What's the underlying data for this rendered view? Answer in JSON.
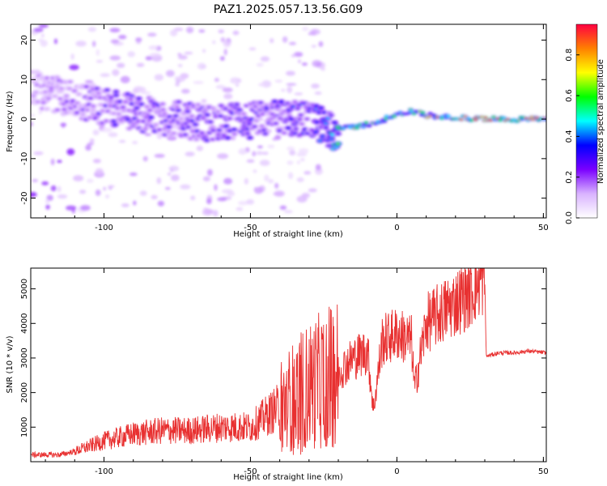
{
  "figure": {
    "title": "PAZ1.2025.057.13.56.G09"
  },
  "chart_data": [
    {
      "type": "heatmap",
      "title": "PAZ1.2025.057.13.56.G09",
      "xlabel": "Height of straight line (km)",
      "ylabel": "Frequency (Hz)",
      "xlim": [
        -125,
        51
      ],
      "ylim": [
        -25,
        24
      ],
      "xticks": [
        -100,
        -50,
        0,
        50
      ],
      "yticks": [
        -20,
        -10,
        0,
        10,
        20
      ],
      "colorbar": {
        "label": "Normalized spectral amplitude",
        "range": [
          0,
          0.95
        ],
        "ticks": [
          0.0,
          0.2,
          0.4,
          0.6,
          0.8
        ],
        "colors": [
          "#ffffff",
          "#d9b3ff",
          "#7a00ff",
          "#0000ff",
          "#00ffff",
          "#00ff00",
          "#ffff00",
          "#ff8000",
          "#ff0040"
        ]
      },
      "ridge": {
        "name": "",
        "x": [
          -125,
          -115,
          -105,
          -95,
          -85,
          -75,
          -65,
          -55,
          -45,
          -35,
          -27,
          -22,
          -15,
          -8,
          0,
          5,
          10,
          20,
          30,
          40,
          51
        ],
        "frequency": [
          8,
          6,
          4,
          2.5,
          1,
          0,
          -1,
          -0.5,
          0,
          0.5,
          -1,
          -3,
          -2,
          -1,
          1,
          2,
          1,
          0.3,
          0,
          0,
          0
        ],
        "amplitude": [
          0.15,
          0.2,
          0.25,
          0.3,
          0.3,
          0.28,
          0.3,
          0.32,
          0.3,
          0.35,
          0.4,
          0.55,
          0.6,
          0.6,
          0.55,
          0.6,
          0.7,
          0.85,
          0.9,
          0.85,
          0.8
        ]
      }
    },
    {
      "type": "line",
      "title": "",
      "xlabel": "Height of straight line (km)",
      "ylabel": "SNR (10 * v/v)",
      "xlim": [
        -125,
        51
      ],
      "ylim": [
        0,
        5600
      ],
      "xticks": [
        -100,
        -50,
        0,
        50
      ],
      "yticks": [
        1000,
        2000,
        3000,
        4000,
        5000
      ],
      "color": "#e83030",
      "series": [
        {
          "name": "",
          "x": [
            -125,
            -115,
            -110,
            -100,
            -90,
            -80,
            -70,
            -60,
            -50,
            -40,
            -35,
            -30,
            -25,
            -20,
            -15,
            -10,
            -8,
            -5,
            0,
            5,
            6,
            10,
            15,
            20,
            25,
            28,
            30,
            30.5,
            35,
            40,
            45,
            51
          ],
          "y": [
            200,
            200,
            300,
            600,
            800,
            900,
            900,
            1000,
            1000,
            1600,
            1900,
            2200,
            2400,
            2600,
            3000,
            3200,
            1500,
            3500,
            3700,
            3500,
            2100,
            4000,
            4300,
            4600,
            4900,
            5250,
            5300,
            3050,
            3150,
            3150,
            3200,
            3150
          ]
        }
      ]
    }
  ]
}
